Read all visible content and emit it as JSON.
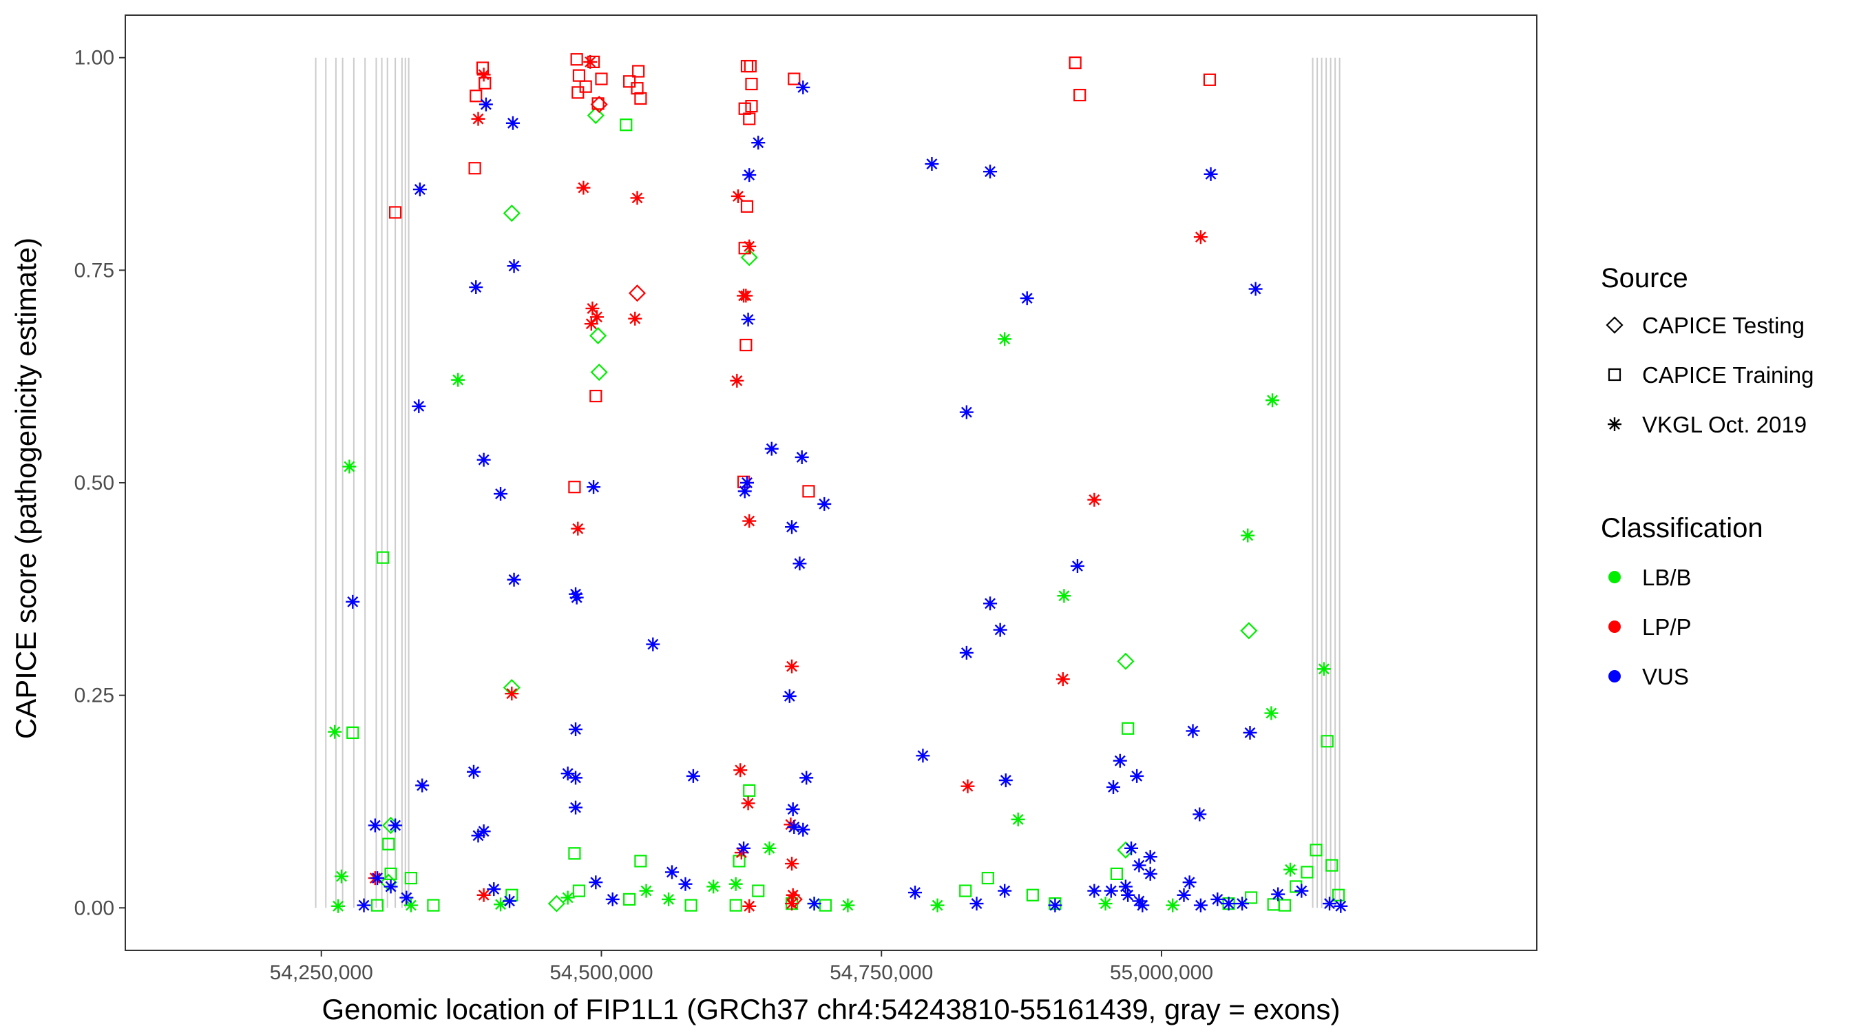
{
  "chart_data": {
    "type": "scatter",
    "xlabel": "Genomic location of FIP1L1 (GRCh37 chr4:54243810-55161439, gray = exons)",
    "ylabel": "CAPICE score (pathogenicity estimate)",
    "xlim": [
      54075000,
      55335000
    ],
    "ylim": [
      -0.05,
      1.05
    ],
    "xticks": [
      54250000,
      54500000,
      54750000,
      55000000
    ],
    "xtick_labels": [
      "54,250,000",
      "54,500,000",
      "54,750,000",
      "55,000,000"
    ],
    "yticks": [
      0,
      0.25,
      0.5,
      0.75,
      1
    ],
    "ytick_labels": [
      "0.00",
      "0.25",
      "0.50",
      "0.75",
      "1.00"
    ],
    "grid": false,
    "legend_position": "right",
    "exons": [
      54245000,
      54254000,
      54263000,
      54269000,
      54279000,
      54289000,
      54299000,
      54304000,
      54309000,
      54316000,
      54322000,
      54325000,
      54328000,
      55135000,
      55139000,
      55143000,
      55147000,
      55151000,
      55155000,
      55159000
    ],
    "legend": {
      "shape": {
        "title": "Source",
        "entries": [
          {
            "label": "CAPICE Testing",
            "shape": "diamond"
          },
          {
            "label": "CAPICE Training",
            "shape": "square"
          },
          {
            "label": "VKGL Oct. 2019",
            "shape": "asterisk"
          }
        ]
      },
      "color": {
        "title": "Classification",
        "entries": [
          {
            "label": "LB/B",
            "color": "#00ee00"
          },
          {
            "label": "LP/P",
            "color": "#ff0000"
          },
          {
            "label": "VUS",
            "color": "#0000ff"
          }
        ]
      }
    },
    "series": [
      {
        "source": "CAPICE Testing",
        "class": "LB/B",
        "points": [
          [
            54312000,
            0.097
          ],
          [
            54420000,
            0.817
          ],
          [
            54420000,
            0.259
          ],
          [
            54495000,
            0.932
          ],
          [
            54497000,
            0.673
          ],
          [
            54498000,
            0.63
          ],
          [
            54632000,
            0.765
          ],
          [
            54968000,
            0.29
          ],
          [
            54968000,
            0.068
          ],
          [
            55078000,
            0.326
          ],
          [
            54310000,
            0.03
          ],
          [
            54460000,
            0.005
          ]
        ]
      },
      {
        "source": "CAPICE Testing",
        "class": "LP/P",
        "points": [
          [
            54498000,
            0.945
          ],
          [
            54532000,
            0.723
          ],
          [
            54672000,
            0.01
          ]
        ]
      },
      {
        "source": "CAPICE Training",
        "class": "LB/B",
        "points": [
          [
            54278000,
            0.206
          ],
          [
            54305000,
            0.412
          ],
          [
            54310000,
            0.075
          ],
          [
            54312000,
            0.04
          ],
          [
            54330000,
            0.035
          ],
          [
            54476000,
            0.064
          ],
          [
            54522000,
            0.921
          ],
          [
            54535000,
            0.055
          ],
          [
            54632000,
            0.138
          ],
          [
            54623000,
            0.055
          ],
          [
            54970000,
            0.211
          ],
          [
            54960000,
            0.04
          ],
          [
            55148000,
            0.196
          ],
          [
            55138000,
            0.068
          ],
          [
            55152000,
            0.05
          ],
          [
            55130000,
            0.042
          ],
          [
            54845000,
            0.035
          ],
          [
            54825000,
            0.02
          ],
          [
            54885000,
            0.015
          ],
          [
            54905000,
            0.005
          ],
          [
            54580000,
            0.003
          ],
          [
            54700000,
            0.003
          ],
          [
            54525000,
            0.01
          ],
          [
            54420000,
            0.015
          ],
          [
            54300000,
            0.003
          ],
          [
            55110000,
            0.003
          ],
          [
            55080000,
            0.012
          ],
          [
            55060000,
            0.005
          ],
          [
            55100000,
            0.004
          ],
          [
            54670000,
            0.005
          ],
          [
            54640000,
            0.02
          ],
          [
            54480000,
            0.02
          ],
          [
            54350000,
            0.003
          ],
          [
            54620000,
            0.003
          ],
          [
            55158000,
            0.015
          ],
          [
            55120000,
            0.025
          ]
        ]
      },
      {
        "source": "CAPICE Training",
        "class": "LP/P",
        "points": [
          [
            54316000,
            0.818
          ],
          [
            54387000,
            0.87
          ],
          [
            54388000,
            0.955
          ],
          [
            54394000,
            0.988
          ],
          [
            54396000,
            0.97
          ],
          [
            54478000,
            0.998
          ],
          [
            54480000,
            0.979
          ],
          [
            54479000,
            0.959
          ],
          [
            54486000,
            0.966
          ],
          [
            54493000,
            0.995
          ],
          [
            54500000,
            0.975
          ],
          [
            54497000,
            0.946
          ],
          [
            54495000,
            0.602
          ],
          [
            54476000,
            0.495
          ],
          [
            54525000,
            0.972
          ],
          [
            54533000,
            0.984
          ],
          [
            54532000,
            0.964
          ],
          [
            54535000,
            0.952
          ],
          [
            54630000,
            0.99
          ],
          [
            54633000,
            0.99
          ],
          [
            54634000,
            0.969
          ],
          [
            54628000,
            0.94
          ],
          [
            54634000,
            0.943
          ],
          [
            54632000,
            0.928
          ],
          [
            54630000,
            0.825
          ],
          [
            54628000,
            0.776
          ],
          [
            54629000,
            0.662
          ],
          [
            54627000,
            0.501
          ],
          [
            54672000,
            0.975
          ],
          [
            54685000,
            0.49
          ],
          [
            54923000,
            0.994
          ],
          [
            54927000,
            0.956
          ],
          [
            55043000,
            0.974
          ]
        ]
      },
      {
        "source": "VKGL Oct. 2019",
        "class": "LB/B",
        "points": [
          [
            54262000,
            0.207
          ],
          [
            54275000,
            0.519
          ],
          [
            54268000,
            0.037
          ],
          [
            54372000,
            0.621
          ],
          [
            54620000,
            0.028
          ],
          [
            54650000,
            0.07
          ],
          [
            54860000,
            0.669
          ],
          [
            54872000,
            0.104
          ],
          [
            54913000,
            0.367
          ],
          [
            55077000,
            0.438
          ],
          [
            55099000,
            0.597
          ],
          [
            55098000,
            0.229
          ],
          [
            55145000,
            0.281
          ],
          [
            55115000,
            0.045
          ],
          [
            54540000,
            0.02
          ],
          [
            54560000,
            0.01
          ],
          [
            54600000,
            0.025
          ],
          [
            54690000,
            0.005
          ],
          [
            54720000,
            0.003
          ],
          [
            54800000,
            0.003
          ],
          [
            54950000,
            0.005
          ],
          [
            55010000,
            0.003
          ],
          [
            54265000,
            0.002
          ],
          [
            54330000,
            0.003
          ],
          [
            54410000,
            0.004
          ],
          [
            54470000,
            0.012
          ]
        ]
      },
      {
        "source": "VKGL Oct. 2019",
        "class": "LP/P",
        "points": [
          [
            54390000,
            0.928
          ],
          [
            54395000,
            0.98
          ],
          [
            54484000,
            0.847
          ],
          [
            54479000,
            0.446
          ],
          [
            54490000,
            0.995
          ],
          [
            54492000,
            0.705
          ],
          [
            54491000,
            0.687
          ],
          [
            54496000,
            0.695
          ],
          [
            54532000,
            0.835
          ],
          [
            54530000,
            0.693
          ],
          [
            54622000,
            0.837
          ],
          [
            54627000,
            0.72
          ],
          [
            54629000,
            0.72
          ],
          [
            54632000,
            0.778
          ],
          [
            54621000,
            0.62
          ],
          [
            54632000,
            0.455
          ],
          [
            54624000,
            0.162
          ],
          [
            54631000,
            0.123
          ],
          [
            54625000,
            0.065
          ],
          [
            54632000,
            0.002
          ],
          [
            54670000,
            0.284
          ],
          [
            54669000,
            0.098
          ],
          [
            54670000,
            0.052
          ],
          [
            54671000,
            0.015
          ],
          [
            54670000,
            0.005
          ],
          [
            54298000,
            0.035
          ],
          [
            54395000,
            0.015
          ],
          [
            54420000,
            0.252
          ],
          [
            54827000,
            0.143
          ],
          [
            54940000,
            0.48
          ],
          [
            54912000,
            0.269
          ],
          [
            55035000,
            0.789
          ]
        ]
      },
      {
        "source": "VKGL Oct. 2019",
        "class": "VUS",
        "points": [
          [
            54397000,
            0.945
          ],
          [
            54421000,
            0.923
          ],
          [
            54422000,
            0.755
          ],
          [
            54338000,
            0.845
          ],
          [
            54337000,
            0.59
          ],
          [
            54388000,
            0.73
          ],
          [
            54395000,
            0.527
          ],
          [
            54410000,
            0.487
          ],
          [
            54422000,
            0.386
          ],
          [
            54477000,
            0.369
          ],
          [
            54478000,
            0.365
          ],
          [
            54493000,
            0.495
          ],
          [
            54477000,
            0.21
          ],
          [
            54470000,
            0.158
          ],
          [
            54477000,
            0.153
          ],
          [
            54477000,
            0.118
          ],
          [
            54546000,
            0.31
          ],
          [
            54582000,
            0.155
          ],
          [
            54563000,
            0.042
          ],
          [
            54575000,
            0.028
          ],
          [
            54386000,
            0.16
          ],
          [
            54390000,
            0.085
          ],
          [
            54395000,
            0.09
          ],
          [
            54340000,
            0.144
          ],
          [
            54316000,
            0.097
          ],
          [
            54298000,
            0.097
          ],
          [
            54278000,
            0.36
          ],
          [
            54300000,
            0.035
          ],
          [
            54312000,
            0.025
          ],
          [
            54326000,
            0.012
          ],
          [
            54288000,
            0.003
          ],
          [
            54404000,
            0.022
          ],
          [
            54418000,
            0.008
          ],
          [
            54495000,
            0.03
          ],
          [
            54510000,
            0.01
          ],
          [
            54680000,
            0.965
          ],
          [
            54640000,
            0.9
          ],
          [
            54632000,
            0.862
          ],
          [
            54631000,
            0.692
          ],
          [
            54652000,
            0.54
          ],
          [
            54679000,
            0.53
          ],
          [
            54630000,
            0.5
          ],
          [
            54628000,
            0.49
          ],
          [
            54699000,
            0.475
          ],
          [
            54670000,
            0.448
          ],
          [
            54677000,
            0.405
          ],
          [
            54668000,
            0.249
          ],
          [
            54683000,
            0.153
          ],
          [
            54671000,
            0.116
          ],
          [
            54672000,
            0.095
          ],
          [
            54680000,
            0.092
          ],
          [
            54627000,
            0.07
          ],
          [
            54690000,
            0.005
          ],
          [
            54795000,
            0.875
          ],
          [
            54847000,
            0.866
          ],
          [
            54880000,
            0.717
          ],
          [
            54826000,
            0.583
          ],
          [
            54847000,
            0.358
          ],
          [
            54856000,
            0.327
          ],
          [
            54826000,
            0.3
          ],
          [
            54787000,
            0.179
          ],
          [
            54861000,
            0.15
          ],
          [
            54925000,
            0.402
          ],
          [
            54963000,
            0.173
          ],
          [
            54978000,
            0.155
          ],
          [
            54957000,
            0.142
          ],
          [
            54973000,
            0.07
          ],
          [
            54990000,
            0.06
          ],
          [
            54980000,
            0.05
          ],
          [
            54990000,
            0.04
          ],
          [
            54968000,
            0.025
          ],
          [
            54955000,
            0.02
          ],
          [
            54940000,
            0.02
          ],
          [
            54970000,
            0.015
          ],
          [
            54980000,
            0.008
          ],
          [
            54983000,
            0.003
          ],
          [
            55044000,
            0.863
          ],
          [
            55084000,
            0.728
          ],
          [
            55028000,
            0.208
          ],
          [
            55079000,
            0.206
          ],
          [
            55034000,
            0.11
          ],
          [
            55025000,
            0.03
          ],
          [
            55020000,
            0.015
          ],
          [
            55050000,
            0.01
          ],
          [
            55060000,
            0.005
          ],
          [
            55035000,
            0.003
          ],
          [
            55072000,
            0.005
          ],
          [
            55104000,
            0.016
          ],
          [
            55125000,
            0.02
          ],
          [
            55150000,
            0.005
          ],
          [
            55160000,
            0.002
          ],
          [
            54780000,
            0.018
          ],
          [
            54835000,
            0.005
          ],
          [
            54860000,
            0.02
          ],
          [
            54905000,
            0.003
          ]
        ]
      }
    ]
  }
}
